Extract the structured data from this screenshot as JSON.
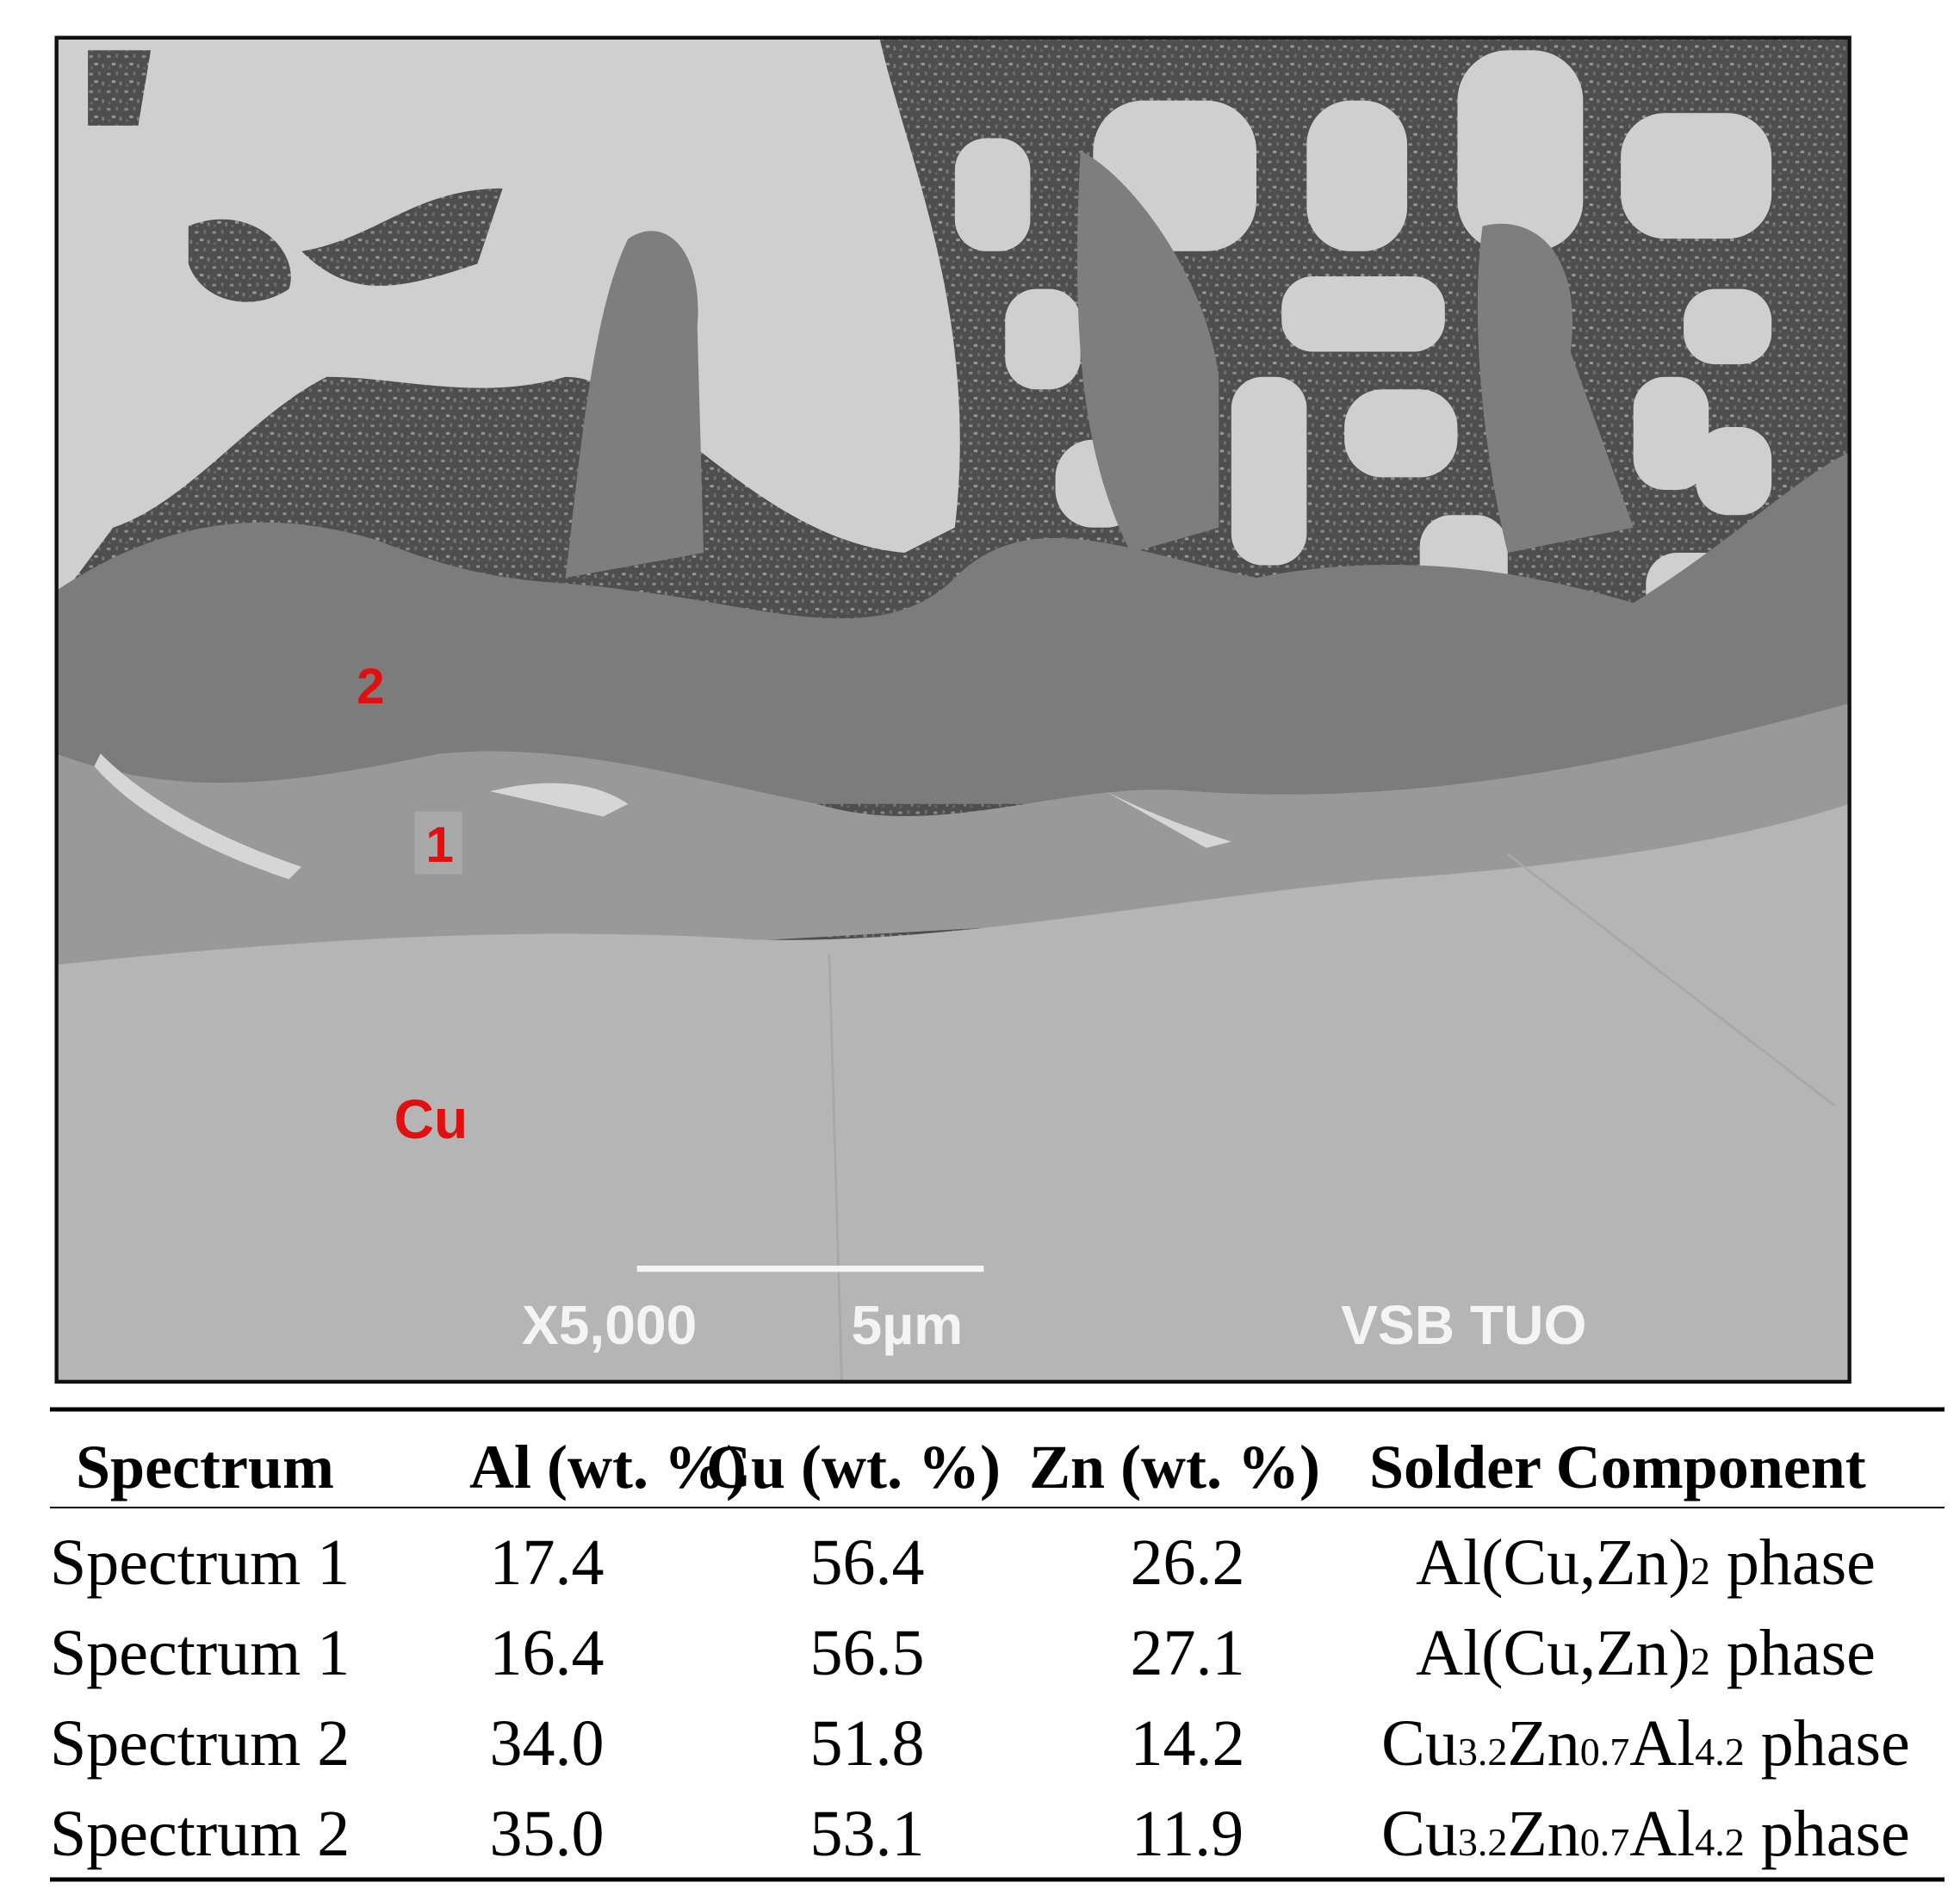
{
  "micrograph": {
    "labels": [
      "2",
      "1",
      "Cu"
    ],
    "magnification": "X5,000",
    "scale_bar": "5µm",
    "institution": "VSB TUO"
  },
  "table": {
    "header": [
      "Spectrum",
      "Al (wt. %)",
      "Cu (wt. %)",
      "Zn (wt. %)",
      "Solder Component"
    ],
    "rows": [
      [
        "Spectrum 1",
        "17.4",
        "56.4",
        "26.2",
        [
          {
            "text": "Al(Cu,Zn)"
          },
          {
            "sub": "2"
          },
          {
            "text": " phase"
          }
        ]
      ],
      [
        "Spectrum 1",
        "16.4",
        "56.5",
        "27.1",
        [
          {
            "text": "Al(Cu,Zn)"
          },
          {
            "sub": "2"
          },
          {
            "text": " phase"
          }
        ]
      ],
      [
        "Spectrum 2",
        "34.0",
        "51.8",
        "14.2",
        [
          {
            "text": "Cu"
          },
          {
            "sub": "3.2"
          },
          {
            "text": "Zn"
          },
          {
            "sub": "0.7"
          },
          {
            "text": "Al"
          },
          {
            "sub": "4.2"
          },
          {
            "text": " phase"
          }
        ]
      ],
      [
        "Spectrum 2",
        "35.0",
        "53.1",
        "11.9",
        [
          {
            "text": "Cu"
          },
          {
            "sub": "3.2"
          },
          {
            "text": "Zn"
          },
          {
            "sub": "0.7"
          },
          {
            "text": "Al"
          },
          {
            "sub": "4.2"
          },
          {
            "text": " phase"
          }
        ]
      ]
    ]
  }
}
